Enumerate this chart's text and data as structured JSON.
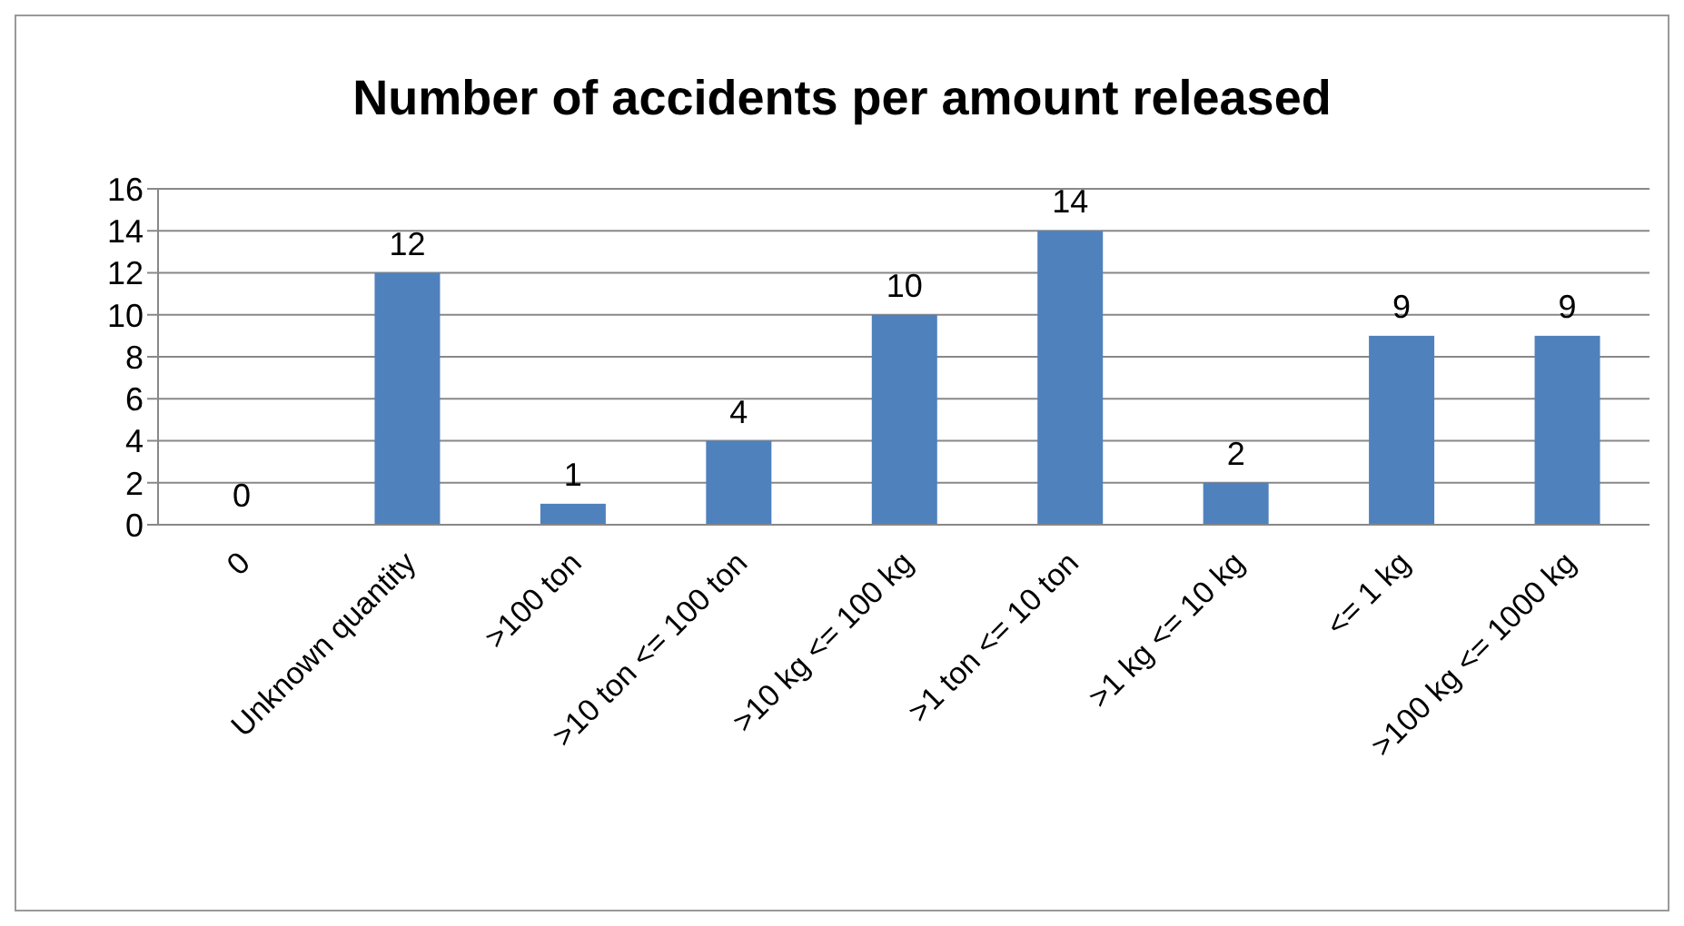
{
  "chart_data": {
    "type": "bar",
    "title": "Number of accidents per amount released",
    "categories": [
      "0",
      "Unknown quantity",
      ">100 ton",
      ">10 ton <= 100 ton",
      ">10 kg <= 100 kg",
      ">1 ton <= 10 ton",
      ">1 kg <= 10 kg",
      "<= 1 kg",
      ">100 kg <= 1000 kg"
    ],
    "values": [
      0,
      12,
      1,
      4,
      10,
      14,
      2,
      9,
      9
    ],
    "color": "#4f81bd",
    "ylim": [
      0,
      16
    ],
    "yticks": [
      0,
      2,
      4,
      6,
      8,
      10,
      12,
      14,
      16
    ],
    "grid": "y",
    "data_labels": true,
    "legend": false
  }
}
